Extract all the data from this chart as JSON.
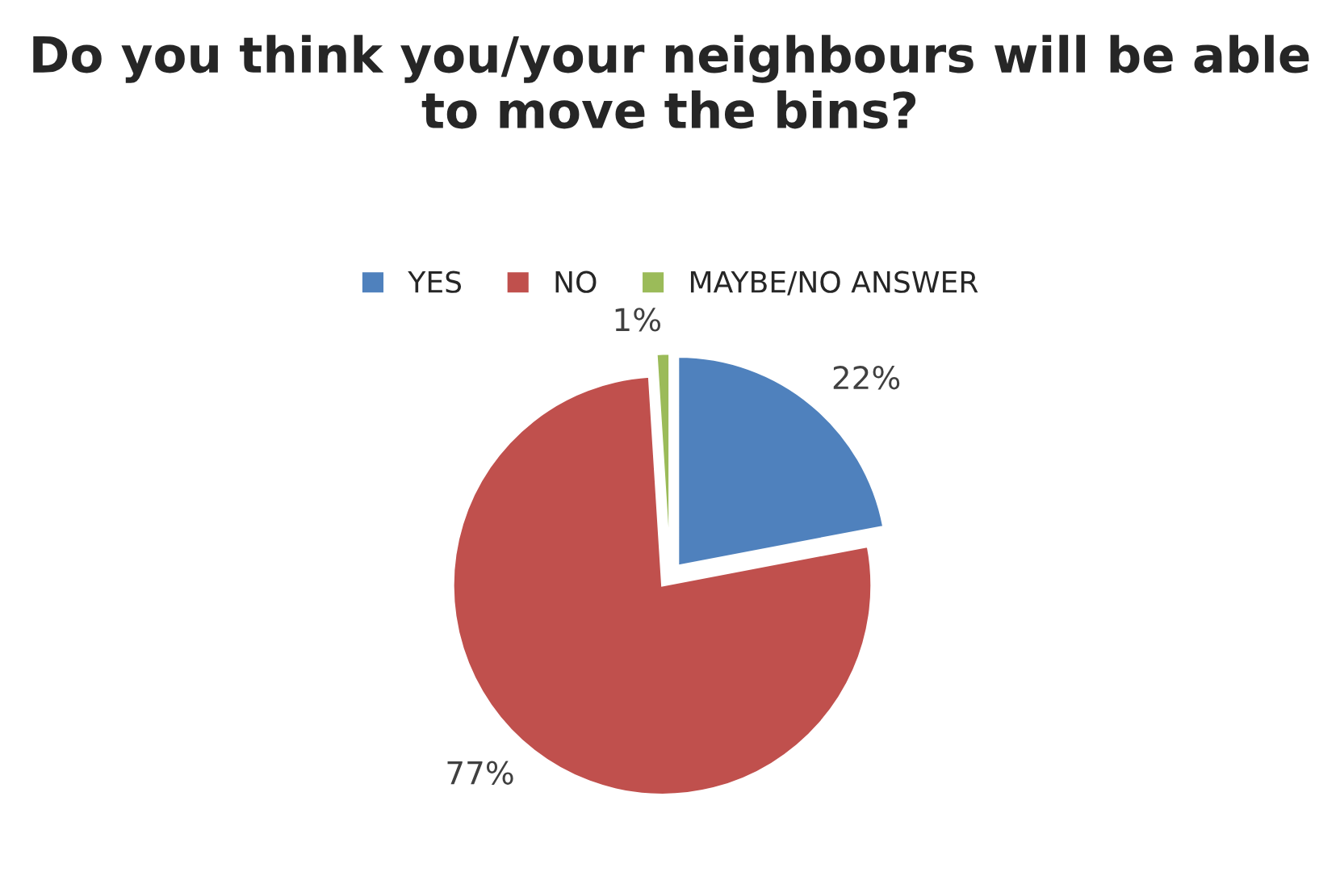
{
  "chart_data": {
    "type": "pie",
    "title": "Do you think you/your neighbours will be able to move the bins?",
    "categories": [
      "YES",
      "NO",
      "MAYBE/NO ANSWER"
    ],
    "values": [
      22,
      77,
      1
    ],
    "value_labels": [
      "22%",
      "77%",
      "1%"
    ],
    "colors": [
      "#4f81bd",
      "#c0504d",
      "#9bbb59"
    ],
    "legend": "top"
  }
}
